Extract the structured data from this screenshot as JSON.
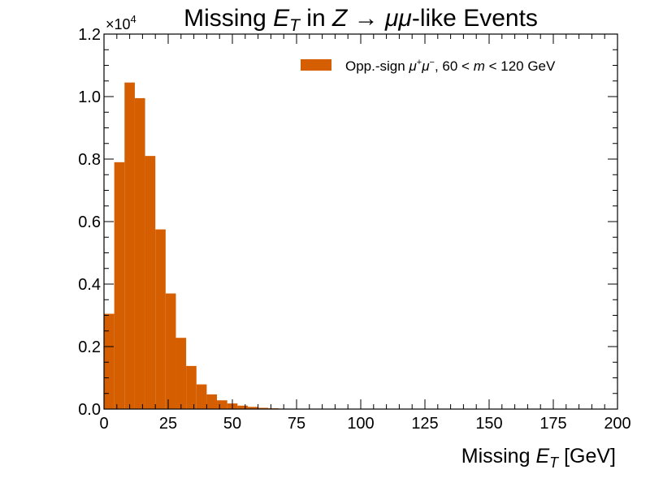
{
  "chart_data": {
    "type": "bar",
    "title_parts": [
      "Missing ",
      "E",
      "T",
      " in ",
      "Z",
      " → ",
      "μμ",
      "-like Events"
    ],
    "xlabel_parts": [
      "Missing ",
      "E",
      "T",
      " [GeV]"
    ],
    "ylabel": "",
    "y_multiplier_base": "×10",
    "y_multiplier_exp": "4",
    "legend": {
      "placement": "top-right",
      "label_parts": [
        "Opp.-sign ",
        "μ",
        "+",
        "μ",
        "−",
        ", 60 < ",
        "m",
        " < 120 GeV"
      ]
    },
    "color": "#d55e00",
    "xlim": [
      0,
      200
    ],
    "ylim": [
      0,
      12000
    ],
    "bin_width": 4,
    "bin_edges_start": 0,
    "values": [
      3050,
      7900,
      10450,
      9950,
      8100,
      5750,
      3700,
      2280,
      1380,
      790,
      470,
      280,
      180,
      110,
      70,
      40,
      25,
      15,
      10,
      5,
      4,
      3,
      2,
      1,
      1,
      1,
      0,
      0,
      0,
      0,
      0,
      0,
      0,
      0,
      0,
      0,
      0,
      0,
      0,
      0,
      0,
      0,
      0,
      0,
      0,
      0,
      0,
      0,
      0,
      0
    ],
    "x_ticks": [
      "0",
      "25",
      "50",
      "75",
      "100",
      "125",
      "150",
      "175",
      "200"
    ],
    "y_ticks": [
      "0.0",
      "0.2",
      "0.4",
      "0.6",
      "0.8",
      "1.0",
      "1.2"
    ],
    "y_tick_values": [
      0,
      2000,
      4000,
      6000,
      8000,
      10000,
      12000
    ],
    "x_tick_values": [
      0,
      25,
      50,
      75,
      100,
      125,
      150,
      175,
      200
    ]
  }
}
